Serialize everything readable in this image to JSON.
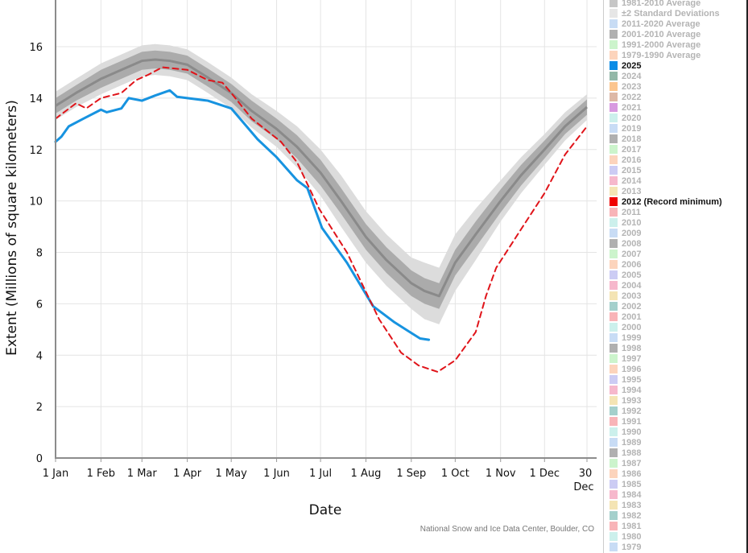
{
  "chart_data": {
    "type": "line",
    "xlabel": "Date",
    "ylabel": "Extent (Millions of square kilometers)",
    "ylim": [
      0,
      17
    ],
    "yticks": [
      0,
      2,
      4,
      6,
      8,
      10,
      12,
      14,
      16
    ],
    "xticks": [
      {
        "date": "01-01",
        "label": "1 Jan"
      },
      {
        "date": "02-01",
        "label": "1 Feb"
      },
      {
        "date": "03-01",
        "label": "1 Mar"
      },
      {
        "date": "04-01",
        "label": "1 Apr"
      },
      {
        "date": "05-01",
        "label": "1 May"
      },
      {
        "date": "06-01",
        "label": "1 Jun"
      },
      {
        "date": "07-01",
        "label": "1 Jul"
      },
      {
        "date": "08-01",
        "label": "1 Aug"
      },
      {
        "date": "09-01",
        "label": "1 Sep"
      },
      {
        "date": "10-01",
        "label": "1 Oct"
      },
      {
        "date": "11-01",
        "label": "1 Nov"
      },
      {
        "date": "12-01",
        "label": "1 Dec"
      },
      {
        "date": "12-30",
        "label": "30 Dec"
      }
    ],
    "grid": true,
    "credit": "National Snow and Ice Data Center, Boulder, CO",
    "average": {
      "name": "1981-2010 Average",
      "color": "#8a8a8a",
      "band_name": "±2 Standard Deviations",
      "band_color": "#dcdcdc",
      "inner_band_color": "#ababab",
      "x": [
        "01-01",
        "01-15",
        "02-01",
        "02-15",
        "03-01",
        "03-10",
        "03-20",
        "04-01",
        "04-15",
        "05-01",
        "05-15",
        "06-01",
        "06-15",
        "07-01",
        "07-15",
        "08-01",
        "08-15",
        "09-01",
        "09-10",
        "09-20",
        "10-01",
        "10-15",
        "11-01",
        "11-15",
        "12-01",
        "12-15",
        "12-30"
      ],
      "y": [
        13.7,
        14.2,
        14.75,
        15.1,
        15.45,
        15.5,
        15.45,
        15.3,
        14.8,
        14.2,
        13.5,
        12.8,
        12.1,
        11.1,
        10.0,
        8.6,
        7.7,
        6.8,
        6.5,
        6.3,
        7.6,
        8.7,
        10.0,
        11.0,
        12.0,
        12.9,
        13.65
      ],
      "two_sd": [
        0.55,
        0.55,
        0.6,
        0.6,
        0.6,
        0.6,
        0.6,
        0.6,
        0.6,
        0.6,
        0.65,
        0.7,
        0.8,
        0.9,
        1.0,
        1.0,
        1.0,
        1.0,
        1.1,
        1.1,
        1.1,
        1.0,
        0.8,
        0.7,
        0.6,
        0.55,
        0.5
      ],
      "inner": [
        0.3,
        0.3,
        0.35,
        0.35,
        0.35,
        0.35,
        0.35,
        0.35,
        0.35,
        0.35,
        0.4,
        0.4,
        0.45,
        0.5,
        0.5,
        0.5,
        0.5,
        0.5,
        0.5,
        0.5,
        0.5,
        0.5,
        0.45,
        0.4,
        0.35,
        0.3,
        0.3
      ]
    },
    "series": [
      {
        "name": "2025",
        "color": "#1793e0",
        "dashed": false,
        "x": [
          "01-01",
          "01-05",
          "01-10",
          "01-20",
          "02-01",
          "02-05",
          "02-15",
          "02-20",
          "03-01",
          "03-10",
          "03-20",
          "03-25",
          "04-01",
          "04-15",
          "05-01",
          "05-19",
          "06-01",
          "06-15",
          "06-22",
          "07-02",
          "07-19",
          "08-06",
          "08-20",
          "08-31",
          "09-07",
          "09-13"
        ],
        "y": [
          12.3,
          12.5,
          12.9,
          13.2,
          13.55,
          13.45,
          13.6,
          14.0,
          13.9,
          14.1,
          14.3,
          14.05,
          14.0,
          13.9,
          13.6,
          12.4,
          11.7,
          10.8,
          10.5,
          8.95,
          7.6,
          5.9,
          5.3,
          4.9,
          4.65,
          4.6
        ]
      },
      {
        "name": "2012 (Record minimum)",
        "color": "#e0141a",
        "dashed": true,
        "x": [
          "01-01",
          "01-15",
          "01-22",
          "02-01",
          "02-15",
          "02-25",
          "03-05",
          "03-15",
          "04-01",
          "04-15",
          "04-25",
          "05-01",
          "05-15",
          "06-04",
          "06-15",
          "06-30",
          "07-19",
          "08-10",
          "08-25",
          "09-06",
          "09-19",
          "10-01",
          "10-15",
          "10-22",
          "10-29",
          "11-15",
          "12-01",
          "12-15",
          "12-30"
        ],
        "y": [
          13.2,
          13.8,
          13.6,
          14.0,
          14.2,
          14.7,
          14.9,
          15.2,
          15.1,
          14.7,
          14.6,
          14.2,
          13.2,
          12.3,
          11.5,
          9.7,
          8.0,
          5.4,
          4.1,
          3.6,
          3.35,
          3.8,
          4.9,
          6.3,
          7.4,
          8.9,
          10.3,
          11.8,
          12.9
        ]
      }
    ]
  },
  "legend": {
    "items": [
      {
        "label": "1981-2010 Average",
        "color": "#c6c6c6",
        "active": false
      },
      {
        "label": "±2 Standard Deviations",
        "color": "#e6e6e6",
        "active": false
      },
      {
        "label": "2011-2020 Average",
        "color": "#c8dcf4",
        "active": false
      },
      {
        "label": "2001-2010 Average",
        "color": "#b0b0b0",
        "active": false
      },
      {
        "label": "1991-2000 Average",
        "color": "#ccf4cc",
        "active": false
      },
      {
        "label": "1979-1990 Average",
        "color": "#fcd4bc",
        "active": false
      },
      {
        "label": "2025",
        "color": "#0a8ce6",
        "active": true
      },
      {
        "label": "2024",
        "color": "#93b8a8",
        "active": false
      },
      {
        "label": "2023",
        "color": "#fbc58e",
        "active": false
      },
      {
        "label": "2022",
        "color": "#ddb8a6",
        "active": false
      },
      {
        "label": "2021",
        "color": "#d89ae0",
        "active": false
      },
      {
        "label": "2020",
        "color": "#ccf0ec",
        "active": false
      },
      {
        "label": "2019",
        "color": "#c8dcf5",
        "active": false
      },
      {
        "label": "2018",
        "color": "#b0b0b0",
        "active": false
      },
      {
        "label": "2017",
        "color": "#ccf4cc",
        "active": false
      },
      {
        "label": "2016",
        "color": "#fcd4bc",
        "active": false
      },
      {
        "label": "2015",
        "color": "#ccccf4",
        "active": false
      },
      {
        "label": "2014",
        "color": "#f6b8cc",
        "active": false
      },
      {
        "label": "2013",
        "color": "#f4e4b4",
        "active": false
      },
      {
        "label": "2012 (Record minimum)",
        "color": "#f00000",
        "active": true
      },
      {
        "label": "2011",
        "color": "#f8b4b8",
        "active": false
      },
      {
        "label": "2010",
        "color": "#ccf0ec",
        "active": false
      },
      {
        "label": "2009",
        "color": "#c8dcf5",
        "active": false
      },
      {
        "label": "2008",
        "color": "#b0b0b0",
        "active": false
      },
      {
        "label": "2007",
        "color": "#ccf4cc",
        "active": false
      },
      {
        "label": "2006",
        "color": "#fcd4bc",
        "active": false
      },
      {
        "label": "2005",
        "color": "#ccccf4",
        "active": false
      },
      {
        "label": "2004",
        "color": "#f6b8cc",
        "active": false
      },
      {
        "label": "2003",
        "color": "#f4e4b4",
        "active": false
      },
      {
        "label": "2002",
        "color": "#a4d0cc",
        "active": false
      },
      {
        "label": "2001",
        "color": "#f8b4b8",
        "active": false
      },
      {
        "label": "2000",
        "color": "#ccf0ec",
        "active": false
      },
      {
        "label": "1999",
        "color": "#c8dcf5",
        "active": false
      },
      {
        "label": "1998",
        "color": "#b0b0b0",
        "active": false
      },
      {
        "label": "1997",
        "color": "#ccf4cc",
        "active": false
      },
      {
        "label": "1996",
        "color": "#fcd4bc",
        "active": false
      },
      {
        "label": "1995",
        "color": "#ccccf4",
        "active": false
      },
      {
        "label": "1994",
        "color": "#f6b8cc",
        "active": false
      },
      {
        "label": "1993",
        "color": "#f4e4b4",
        "active": false
      },
      {
        "label": "1992",
        "color": "#a4d0cc",
        "active": false
      },
      {
        "label": "1991",
        "color": "#f8b4b8",
        "active": false
      },
      {
        "label": "1990",
        "color": "#ccf0ec",
        "active": false
      },
      {
        "label": "1989",
        "color": "#c8dcf5",
        "active": false
      },
      {
        "label": "1988",
        "color": "#b0b0b0",
        "active": false
      },
      {
        "label": "1987",
        "color": "#ccf4cc",
        "active": false
      },
      {
        "label": "1986",
        "color": "#fcd4bc",
        "active": false
      },
      {
        "label": "1985",
        "color": "#ccccf4",
        "active": false
      },
      {
        "label": "1984",
        "color": "#f6b8cc",
        "active": false
      },
      {
        "label": "1983",
        "color": "#f4e4b4",
        "active": false
      },
      {
        "label": "1982",
        "color": "#a4d0cc",
        "active": false
      },
      {
        "label": "1981",
        "color": "#f8b4b8",
        "active": false
      },
      {
        "label": "1980",
        "color": "#ccf0ec",
        "active": false
      },
      {
        "label": "1979",
        "color": "#c8dcf5",
        "active": false
      }
    ]
  }
}
